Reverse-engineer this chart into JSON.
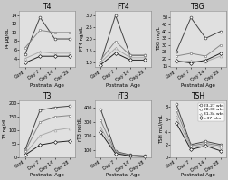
{
  "x_labels": [
    "Cord",
    "Day 7",
    "Day 14",
    "Day 28"
  ],
  "x_positions": [
    0,
    1,
    2,
    3
  ],
  "legend_labels": [
    "23-27 wks",
    "28-30 wks",
    "31-34 wks",
    ">37 wks"
  ],
  "markers": [
    "o",
    "s",
    "^",
    "D"
  ],
  "marker_size": 2.0,
  "colors": [
    "#444444",
    "#888888",
    "#aaaaaa",
    "#222222"
  ],
  "T4": {
    "title": "T4",
    "ylabel": "T4 µg/dL",
    "ylim": [
      2,
      15
    ],
    "yticks": [
      4,
      6,
      8,
      10,
      12,
      14
    ],
    "series": [
      [
        5.0,
        13.5,
        8.5,
        8.5
      ],
      [
        6.5,
        10.5,
        10.0,
        10.0
      ],
      [
        4.0,
        5.5,
        5.2,
        5.2
      ],
      [
        3.0,
        4.5,
        4.5,
        4.5
      ]
    ]
  },
  "FT4": {
    "title": "FT4",
    "ylabel": "FT4 ng/dL",
    "ylim": [
      0.8,
      3.2
    ],
    "yticks": [
      1.0,
      1.5,
      2.0,
      2.5,
      3.0
    ],
    "series": [
      [
        1.0,
        3.0,
        1.3,
        1.3
      ],
      [
        1.1,
        1.9,
        1.3,
        1.3
      ],
      [
        1.0,
        1.6,
        1.2,
        1.2
      ],
      [
        0.9,
        1.4,
        1.1,
        1.1
      ]
    ]
  },
  "TBG": {
    "title": "TBG",
    "ylabel": "TBG mg/L",
    "ylim": [
      14,
      55
    ],
    "yticks": [
      15,
      20,
      25,
      30,
      35,
      40,
      45,
      50
    ],
    "series": [
      [
        25.0,
        50.0,
        35.0,
        40.0
      ],
      [
        22.0,
        24.0,
        22.0,
        30.0
      ],
      [
        18.0,
        18.5,
        18.0,
        22.0
      ],
      [
        18.5,
        17.0,
        19.0,
        24.0
      ]
    ]
  },
  "T3": {
    "title": "T3",
    "ylabel": "T3 ng/dL",
    "ylim": [
      0,
      210
    ],
    "yticks": [
      0,
      50,
      100,
      150,
      200
    ],
    "series": [
      [
        28.0,
        175.0,
        185.0,
        190.0
      ],
      [
        22.0,
        130.0,
        150.0,
        155.0
      ],
      [
        12.0,
        80.0,
        100.0,
        108.0
      ],
      [
        8.0,
        45.0,
        55.0,
        60.0
      ]
    ]
  },
  "rT3": {
    "title": "rT3",
    "ylabel": "rT3 ng/dL",
    "ylim": [
      50,
      450
    ],
    "yticks": [
      100,
      200,
      300,
      400
    ],
    "series": [
      [
        390.0,
        90.0,
        65.0,
        58.0
      ],
      [
        310.0,
        85.0,
        63.0,
        56.0
      ],
      [
        260.0,
        80.0,
        60.0,
        54.0
      ],
      [
        225.0,
        75.0,
        58.0,
        53.0
      ]
    ]
  },
  "TSH": {
    "title": "TSH",
    "ylabel": "TSH mU/mL",
    "ylim": [
      0,
      9
    ],
    "yticks": [
      0,
      2,
      4,
      6,
      8
    ],
    "series": [
      [
        8.5,
        2.0,
        2.5,
        2.0
      ],
      [
        7.5,
        1.8,
        2.2,
        1.8
      ],
      [
        6.5,
        1.5,
        2.0,
        1.5
      ],
      [
        5.5,
        1.2,
        1.8,
        1.0
      ]
    ]
  },
  "bg_color": "#e0e0e0",
  "fig_bg": "#c8c8c8",
  "title_fontsize": 5.5,
  "label_fontsize": 4.0,
  "tick_fontsize": 3.5,
  "legend_fontsize": 3.2,
  "linewidth": 0.7
}
